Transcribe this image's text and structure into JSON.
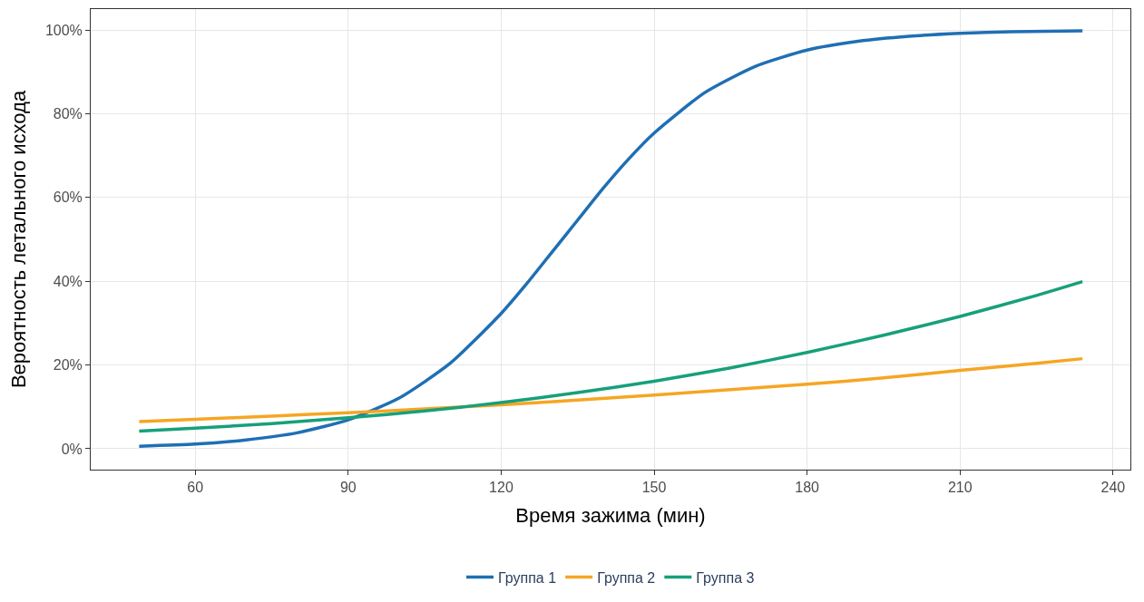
{
  "chart_data": {
    "type": "line",
    "xlabel": "Время зажима (мин)",
    "ylabel": "Вероятность летального исхода",
    "xlim": [
      39.5,
      243.4
    ],
    "xticks": [
      60,
      90,
      120,
      150,
      180,
      210,
      240
    ],
    "ylim": [
      -5,
      105
    ],
    "yticks": [
      {
        "value": 0,
        "label": "0%"
      },
      {
        "value": 20,
        "label": "20%"
      },
      {
        "value": 40,
        "label": "40%"
      },
      {
        "value": 60,
        "label": "60%"
      },
      {
        "value": 80,
        "label": "80%"
      },
      {
        "value": 100,
        "label": "100%"
      }
    ],
    "grid": true,
    "legend": "bottom",
    "marker": "none",
    "line_style": "solid",
    "series": [
      {
        "name": "Группа 1",
        "color": "#1f6fb4",
        "x": [
          49,
          60,
          70,
          80,
          90,
          100,
          110,
          120,
          125,
          130,
          135,
          140,
          145,
          150,
          160,
          170,
          180,
          190,
          200,
          210,
          220,
          234
        ],
        "values": [
          0.6,
          1.1,
          2.1,
          3.8,
          6.9,
          12.1,
          20.4,
          32.3,
          39.4,
          47,
          54.6,
          62.2,
          69.2,
          75.4,
          85.1,
          91.4,
          95.2,
          97.3,
          98.5,
          99.2,
          99.6,
          99.8
        ]
      },
      {
        "name": "Группа 2",
        "color": "#f5a623",
        "x": [
          49,
          60,
          75,
          90,
          105,
          120,
          135,
          150,
          165,
          180,
          195,
          210,
          225,
          234
        ],
        "values": [
          6.5,
          7.0,
          7.8,
          8.6,
          9.5,
          10.5,
          11.6,
          12.8,
          14.1,
          15.4,
          16.9,
          18.7,
          20.4,
          21.5
        ]
      },
      {
        "name": "Группа 3",
        "color": "#17a07a",
        "x": [
          49,
          60,
          75,
          90,
          105,
          120,
          135,
          150,
          165,
          180,
          195,
          210,
          225,
          234
        ],
        "values": [
          4.2,
          4.9,
          6.0,
          7.4,
          9.0,
          11.0,
          13.4,
          16.1,
          19.3,
          23.0,
          27.1,
          31.6,
          36.6,
          39.9
        ]
      }
    ]
  }
}
